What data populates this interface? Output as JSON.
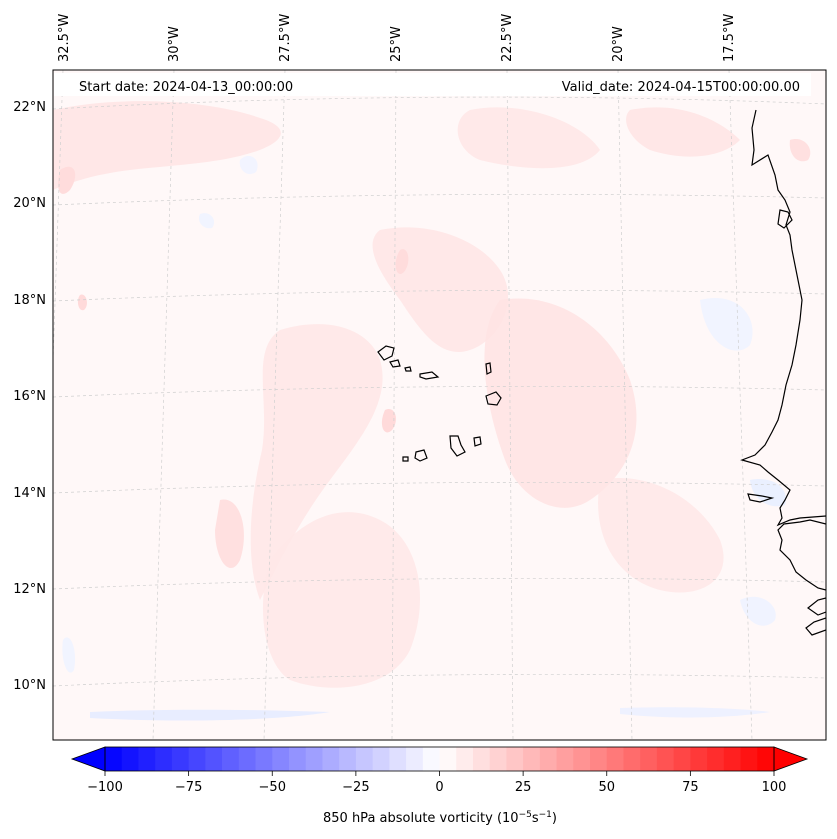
{
  "header": {
    "start_label": "Start date: 2024-04-13_00:00:00",
    "valid_label": "Valid_date: 2024-04-15T00:00:00.00"
  },
  "axes": {
    "lon_ticks": [
      "32.5°W",
      "30°W",
      "27.5°W",
      "25°W",
      "22.5°W",
      "20°W",
      "17.5°W"
    ],
    "lat_ticks": [
      "22°N",
      "20°N",
      "18°N",
      "16°N",
      "14°N",
      "12°N",
      "10°N"
    ]
  },
  "colorbar": {
    "label": "850 hPa absolute vorticity (10",
    "label_exp": "−5",
    "label_unit": "s",
    "label_exp2": "−1",
    "label_close": ")",
    "ticks": [
      "−100",
      "−75",
      "−50",
      "−25",
      "0",
      "25",
      "50",
      "75",
      "100"
    ],
    "min": -100,
    "max": 100,
    "levels": 40
  },
  "colors": {
    "negative_max": "#0000ff",
    "positive_max": "#ff0000",
    "coast": "#000000"
  }
}
